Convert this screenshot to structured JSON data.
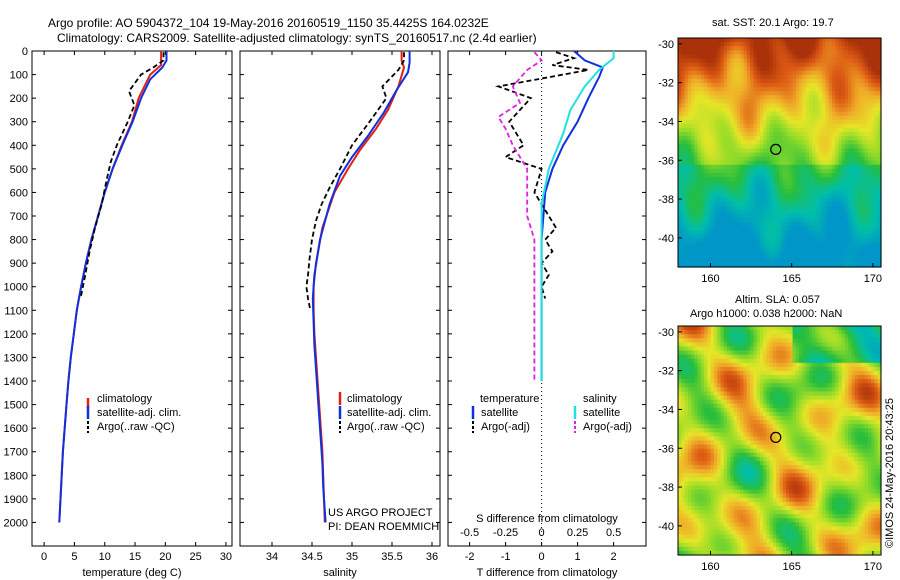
{
  "header": {
    "title_line1": "Argo profile: AO 5904372_104 19-May-2016 20160519_1150 35.4425S 164.0232E",
    "title_line2": "Climatology: CARS2009. Satellite-adjusted climatology: synTS_20160517.nc (2.4d earlier)"
  },
  "colors": {
    "climatology": "#e02010",
    "satellite": "#1030e0",
    "argo": "#000000",
    "sat_salinity": "#20e0e0",
    "argo_adj_s": "#e020e0"
  },
  "legends": {
    "temp": [
      "climatology",
      "satellite-adj. clim.",
      "Argo(..raw -QC)"
    ],
    "sal": [
      "climatology",
      "satellite-adj. clim.",
      "Argo(..raw -QC)"
    ],
    "diff_temperature_header": "temperature",
    "diff_salinity_header": "salinity",
    "diff_temperature": [
      "satellite",
      "Argo(-adj)"
    ],
    "diff_salinity": [
      "satellite",
      "Argo(-adj)"
    ]
  },
  "annotations": {
    "project_line1": "US ARGO PROJECT",
    "project_line2": "PI: DEAN ROEMMICH",
    "sst_title": "sat. SST: 20.1  Argo: 19.7",
    "sla_title1": "Altim. SLA: 0.057",
    "sla_title2": "Argo h1000: 0.038 h2000: NaN",
    "timestamp": "©IMOS 24-May-2016 20:43:25"
  },
  "chart_data": [
    {
      "type": "line",
      "xlabel": "temperature (deg C)",
      "xlim": [
        -2,
        31
      ],
      "ylim": [
        2100,
        0
      ],
      "xticks": [
        0,
        5,
        10,
        15,
        20,
        25,
        30
      ],
      "yticks": [
        0,
        100,
        200,
        300,
        400,
        500,
        600,
        700,
        800,
        900,
        1000,
        1100,
        1200,
        1300,
        1400,
        1500,
        1600,
        1700,
        1800,
        1900,
        2000
      ],
      "series": [
        {
          "name": "climatology",
          "color": "#e02010",
          "points": [
            [
              19.3,
              0
            ],
            [
              19.3,
              60
            ],
            [
              17.5,
              100
            ],
            [
              15.6,
              200
            ],
            [
              14.5,
              300
            ],
            [
              12.8,
              400
            ],
            [
              11.3,
              500
            ],
            [
              10.0,
              600
            ],
            [
              8.9,
              700
            ],
            [
              7.8,
              800
            ],
            [
              6.9,
              900
            ],
            [
              6.1,
              1000
            ],
            [
              5.4,
              1100
            ],
            [
              4.9,
              1200
            ],
            [
              4.4,
              1300
            ],
            [
              4.0,
              1400
            ],
            [
              3.7,
              1500
            ],
            [
              3.4,
              1600
            ],
            [
              3.1,
              1700
            ],
            [
              2.9,
              1800
            ],
            [
              2.7,
              1900
            ],
            [
              2.5,
              2000
            ]
          ]
        },
        {
          "name": "satellite-adj. clim.",
          "color": "#1030e0",
          "points": [
            [
              20.2,
              0
            ],
            [
              20.2,
              40
            ],
            [
              19.5,
              70
            ],
            [
              17.5,
              120
            ],
            [
              16.0,
              200
            ],
            [
              14.6,
              300
            ],
            [
              12.9,
              400
            ],
            [
              11.3,
              500
            ],
            [
              10.0,
              600
            ],
            [
              8.9,
              700
            ],
            [
              7.8,
              800
            ],
            [
              6.9,
              900
            ],
            [
              6.1,
              1000
            ],
            [
              5.4,
              1100
            ],
            [
              4.9,
              1200
            ],
            [
              4.4,
              1300
            ],
            [
              4.0,
              1400
            ],
            [
              3.7,
              1500
            ],
            [
              3.4,
              1600
            ],
            [
              3.1,
              1700
            ],
            [
              2.9,
              1800
            ],
            [
              2.7,
              1900
            ],
            [
              2.5,
              2000
            ]
          ]
        },
        {
          "name": "Argo(..raw -QC)",
          "color": "#000000",
          "dashed": true,
          "points": [
            [
              19.7,
              5
            ],
            [
              19.7,
              40
            ],
            [
              18.0,
              70
            ],
            [
              16.0,
              100
            ],
            [
              14.0,
              170
            ],
            [
              14.9,
              230
            ],
            [
              13.8,
              300
            ],
            [
              12.0,
              400
            ],
            [
              11.0,
              470
            ],
            [
              10.3,
              550
            ],
            [
              9.5,
              650
            ],
            [
              8.4,
              750
            ],
            [
              7.5,
              850
            ],
            [
              6.8,
              950
            ],
            [
              6.0,
              1050
            ]
          ]
        }
      ]
    },
    {
      "type": "line",
      "xlabel": "salinity",
      "xlim": [
        33.6,
        36.1
      ],
      "ylim": [
        2100,
        0
      ],
      "xticks": [
        34,
        34.5,
        35,
        35.5,
        36
      ],
      "xticklabels": [
        "34",
        "34.5",
        "35",
        "35.5",
        "36"
      ],
      "series": [
        {
          "name": "climatology",
          "color": "#e02010",
          "points": [
            [
              35.62,
              0
            ],
            [
              35.62,
              40
            ],
            [
              35.65,
              70
            ],
            [
              35.58,
              150
            ],
            [
              35.45,
              250
            ],
            [
              35.3,
              330
            ],
            [
              35.1,
              420
            ],
            [
              34.95,
              500
            ],
            [
              34.78,
              600
            ],
            [
              34.63,
              750
            ],
            [
              34.55,
              900
            ],
            [
              34.52,
              1000
            ],
            [
              34.52,
              1100
            ],
            [
              34.53,
              1200
            ],
            [
              34.55,
              1300
            ],
            [
              34.57,
              1400
            ],
            [
              34.59,
              1500
            ],
            [
              34.61,
              1600
            ],
            [
              34.63,
              1700
            ],
            [
              34.64,
              1800
            ],
            [
              34.65,
              1900
            ],
            [
              34.66,
              2000
            ]
          ]
        },
        {
          "name": "satellite-adj. clim.",
          "color": "#1030e0",
          "points": [
            [
              35.72,
              0
            ],
            [
              35.72,
              50
            ],
            [
              35.7,
              90
            ],
            [
              35.55,
              170
            ],
            [
              35.4,
              260
            ],
            [
              35.2,
              360
            ],
            [
              35.0,
              450
            ],
            [
              34.85,
              530
            ],
            [
              34.72,
              650
            ],
            [
              34.6,
              800
            ],
            [
              34.53,
              950
            ],
            [
              34.51,
              1050
            ],
            [
              34.52,
              1150
            ],
            [
              34.53,
              1250
            ],
            [
              34.55,
              1350
            ],
            [
              34.57,
              1450
            ],
            [
              34.59,
              1550
            ],
            [
              34.61,
              1650
            ],
            [
              34.63,
              1750
            ],
            [
              34.64,
              1850
            ],
            [
              34.66,
              1950
            ],
            [
              34.67,
              2000
            ]
          ]
        },
        {
          "name": "Argo(..raw -QC)",
          "color": "#000000",
          "dashed": true,
          "points": [
            [
              35.65,
              5
            ],
            [
              35.65,
              40
            ],
            [
              35.58,
              80
            ],
            [
              35.38,
              150
            ],
            [
              35.43,
              200
            ],
            [
              35.22,
              300
            ],
            [
              35.0,
              400
            ],
            [
              34.85,
              500
            ],
            [
              34.72,
              580
            ],
            [
              34.62,
              650
            ],
            [
              34.55,
              720
            ],
            [
              34.5,
              800
            ],
            [
              34.47,
              880
            ],
            [
              34.45,
              950
            ],
            [
              34.43,
              1000
            ],
            [
              34.45,
              1050
            ],
            [
              34.48,
              1100
            ]
          ]
        }
      ]
    },
    {
      "type": "line",
      "xlabel": "T difference from climatology",
      "x2label": "S difference from climatology",
      "xlim": [
        -2.6,
        2.9
      ],
      "x2lim": [
        -0.65,
        0.725
      ],
      "ylim": [
        2100,
        0
      ],
      "xticks": [
        -2,
        -1,
        0,
        1,
        2
      ],
      "x2ticks": [
        -0.5,
        -0.25,
        0,
        0.25,
        0.5
      ],
      "x2ticklabels": [
        "-0.5",
        "-0.25",
        "0",
        "0.25",
        "0.5"
      ],
      "series": [
        {
          "name": "temperature satellite",
          "color": "#1030e0",
          "points": [
            [
              0.9,
              0
            ],
            [
              1.2,
              40
            ],
            [
              1.7,
              70
            ],
            [
              1.6,
              110
            ],
            [
              1.3,
              200
            ],
            [
              1.0,
              300
            ],
            [
              0.6,
              400
            ],
            [
              0.3,
              500
            ],
            [
              0.1,
              600
            ],
            [
              0.05,
              700
            ],
            [
              0.0,
              800
            ],
            [
              0.0,
              900
            ],
            [
              0.0,
              1000
            ],
            [
              0.0,
              1100
            ],
            [
              0.0,
              1200
            ],
            [
              0.0,
              1300
            ],
            [
              0.0,
              1400
            ]
          ]
        },
        {
          "name": "temperature Argo(-adj)",
          "color": "#000000",
          "dashed": true,
          "points": [
            [
              0.4,
              5
            ],
            [
              0.9,
              30
            ],
            [
              0.3,
              60
            ],
            [
              1.3,
              80
            ],
            [
              0.6,
              100
            ],
            [
              -1.2,
              150
            ],
            [
              -0.3,
              200
            ],
            [
              -0.9,
              300
            ],
            [
              -0.5,
              400
            ],
            [
              -1.0,
              450
            ],
            [
              0.0,
              500
            ],
            [
              -0.2,
              600
            ],
            [
              0.2,
              700
            ],
            [
              0.4,
              750
            ],
            [
              0.1,
              800
            ],
            [
              0.3,
              850
            ],
            [
              0.0,
              900
            ],
            [
              0.2,
              950
            ],
            [
              0.0,
              1000
            ],
            [
              0.1,
              1050
            ]
          ]
        },
        {
          "name": "salinity satellite",
          "color": "#20e0e0",
          "points": [
            [
              0.5,
              0
            ],
            [
              0.5,
              30
            ],
            [
              0.4,
              80
            ],
            [
              0.3,
              150
            ],
            [
              0.2,
              250
            ],
            [
              0.15,
              350
            ],
            [
              0.05,
              500
            ],
            [
              0.0,
              650
            ],
            [
              0.0,
              800
            ],
            [
              0.0,
              900
            ],
            [
              0.0,
              1000
            ],
            [
              0.0,
              1100
            ],
            [
              0.0,
              1200
            ],
            [
              0.0,
              1300
            ],
            [
              0.0,
              1400
            ]
          ]
        },
        {
          "name": "salinity Argo(-adj)",
          "color": "#e020e0",
          "dashed": true,
          "points": [
            [
              -0.05,
              5
            ],
            [
              0.0,
              40
            ],
            [
              -0.1,
              80
            ],
            [
              -0.2,
              150
            ],
            [
              -0.15,
              220
            ],
            [
              -0.3,
              280
            ],
            [
              -0.25,
              330
            ],
            [
              -0.2,
              400
            ],
            [
              -0.15,
              450
            ],
            [
              -0.1,
              500
            ],
            [
              -0.1,
              600
            ],
            [
              -0.1,
              700
            ],
            [
              -0.05,
              800
            ],
            [
              -0.05,
              900
            ],
            [
              -0.05,
              1000
            ],
            [
              -0.05,
              1100
            ],
            [
              -0.05,
              1200
            ],
            [
              -0.05,
              1300
            ],
            [
              -0.05,
              1400
            ]
          ]
        }
      ]
    },
    {
      "type": "heatmap",
      "title": "sat. SST: 20.1  Argo: 19.7",
      "xlim": [
        158,
        170.5
      ],
      "ylim": [
        -41.5,
        -29.7
      ],
      "xticks": [
        160,
        165,
        170
      ],
      "yticks": [
        -30,
        -32,
        -34,
        -36,
        -38,
        -40
      ],
      "marker": [
        164.02,
        -35.44
      ]
    },
    {
      "type": "heatmap",
      "title": "Altim. SLA: 0.057",
      "xlim": [
        158,
        170.5
      ],
      "ylim": [
        -41.5,
        -29.7
      ],
      "xticks": [
        160,
        165,
        170
      ],
      "yticks": [
        -30,
        -32,
        -34,
        -36,
        -38,
        -40
      ],
      "marker": [
        164.02,
        -35.44
      ]
    }
  ]
}
